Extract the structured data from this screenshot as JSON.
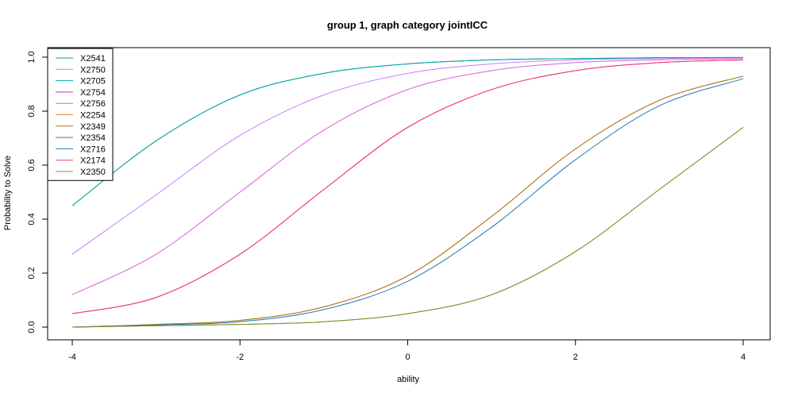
{
  "chart_data": {
    "type": "line",
    "title": "group 1, graph category jointICC",
    "xlabel": "ability",
    "ylabel": "Probability to Solve",
    "xlim": [
      -4,
      4
    ],
    "ylim": [
      0,
      1
    ],
    "xticks": [
      -4,
      -2,
      0,
      2,
      4
    ],
    "yticks": [
      0.0,
      0.2,
      0.4,
      0.6,
      0.8,
      1.0
    ],
    "ytick_labels": [
      "0.0",
      "0.2",
      "0.4",
      "0.6",
      "0.8",
      "1.0"
    ],
    "grid": false,
    "legend_position": "top-left",
    "series": [
      {
        "name": "X2541",
        "color": "#1B9E77",
        "points": [
          [
            -4,
            0.45
          ],
          [
            -3,
            0.69
          ],
          [
            -2,
            0.86
          ],
          [
            -1,
            0.94
          ],
          [
            0,
            0.975
          ],
          [
            1,
            0.99
          ],
          [
            2,
            0.995
          ],
          [
            3,
            0.998
          ],
          [
            4,
            0.999
          ]
        ]
      },
      {
        "name": "X2750",
        "color": "#C77CFF",
        "points": [
          [
            -4,
            0.27
          ],
          [
            -3,
            0.49
          ],
          [
            -2,
            0.71
          ],
          [
            -1,
            0.86
          ],
          [
            0,
            0.94
          ],
          [
            1,
            0.975
          ],
          [
            2,
            0.99
          ],
          [
            3,
            0.995
          ],
          [
            4,
            0.998
          ]
        ]
      },
      {
        "name": "X2705",
        "color": "#00A6A6",
        "points": [
          [
            -4,
            0.45
          ],
          [
            -3,
            0.69
          ],
          [
            -2,
            0.86
          ],
          [
            -1,
            0.94
          ],
          [
            0,
            0.975
          ],
          [
            1,
            0.99
          ],
          [
            2,
            0.995
          ],
          [
            3,
            0.998
          ],
          [
            4,
            0.999
          ]
        ]
      },
      {
        "name": "X2754",
        "color": "#E7298A",
        "points": [
          [
            -4,
            0.05
          ],
          [
            -3,
            0.11
          ],
          [
            -2,
            0.27
          ],
          [
            -1,
            0.51
          ],
          [
            0,
            0.74
          ],
          [
            1,
            0.88
          ],
          [
            2,
            0.95
          ],
          [
            3,
            0.98
          ],
          [
            4,
            0.99
          ]
        ]
      },
      {
        "name": "X2756",
        "color": "#D95FD9",
        "points": [
          [
            -4,
            0.12
          ],
          [
            -3,
            0.27
          ],
          [
            -2,
            0.5
          ],
          [
            -1,
            0.73
          ],
          [
            0,
            0.88
          ],
          [
            1,
            0.95
          ],
          [
            2,
            0.98
          ],
          [
            3,
            0.99
          ],
          [
            4,
            0.995
          ]
        ]
      },
      {
        "name": "X2254",
        "color": "#E6862E",
        "points": [
          [
            -4,
            0.0
          ],
          [
            -3,
            0.01
          ],
          [
            -2,
            0.025
          ],
          [
            -1,
            0.075
          ],
          [
            0,
            0.19
          ],
          [
            1,
            0.41
          ],
          [
            2,
            0.66
          ],
          [
            3,
            0.84
          ],
          [
            4,
            0.93
          ]
        ]
      },
      {
        "name": "X2349",
        "color": "#A6761D",
        "points": [
          [
            -4,
            0.0
          ],
          [
            -3,
            0.01
          ],
          [
            -2,
            0.025
          ],
          [
            -1,
            0.075
          ],
          [
            0,
            0.19
          ],
          [
            1,
            0.41
          ],
          [
            2,
            0.66
          ],
          [
            3,
            0.84
          ],
          [
            4,
            0.93
          ]
        ]
      },
      {
        "name": "X2354",
        "color": "#33A02C",
        "points": [
          [
            -4,
            0.0
          ],
          [
            -3,
            0.005
          ],
          [
            -2,
            0.01
          ],
          [
            -1,
            0.02
          ],
          [
            0,
            0.05
          ],
          [
            1,
            0.12
          ],
          [
            2,
            0.28
          ],
          [
            3,
            0.51
          ],
          [
            4,
            0.74
          ]
        ]
      },
      {
        "name": "X2716",
        "color": "#1F78B4",
        "points": [
          [
            -4,
            0.0
          ],
          [
            -3,
            0.008
          ],
          [
            -2,
            0.02
          ],
          [
            -1,
            0.065
          ],
          [
            0,
            0.17
          ],
          [
            1,
            0.37
          ],
          [
            2,
            0.62
          ],
          [
            3,
            0.82
          ],
          [
            4,
            0.92
          ]
        ]
      },
      {
        "name": "X2174",
        "color": "#F03B6B",
        "points": [
          [
            -4,
            0.05
          ],
          [
            -3,
            0.11
          ],
          [
            -2,
            0.27
          ],
          [
            -1,
            0.51
          ],
          [
            0,
            0.74
          ],
          [
            1,
            0.88
          ],
          [
            2,
            0.95
          ],
          [
            3,
            0.98
          ],
          [
            4,
            0.99
          ]
        ]
      },
      {
        "name": "X2350",
        "color": "#8C8C2E",
        "points": [
          [
            -4,
            0.0
          ],
          [
            -3,
            0.005
          ],
          [
            -2,
            0.01
          ],
          [
            -1,
            0.02
          ],
          [
            0,
            0.05
          ],
          [
            1,
            0.12
          ],
          [
            2,
            0.28
          ],
          [
            3,
            0.51
          ],
          [
            4,
            0.74
          ]
        ]
      }
    ]
  }
}
